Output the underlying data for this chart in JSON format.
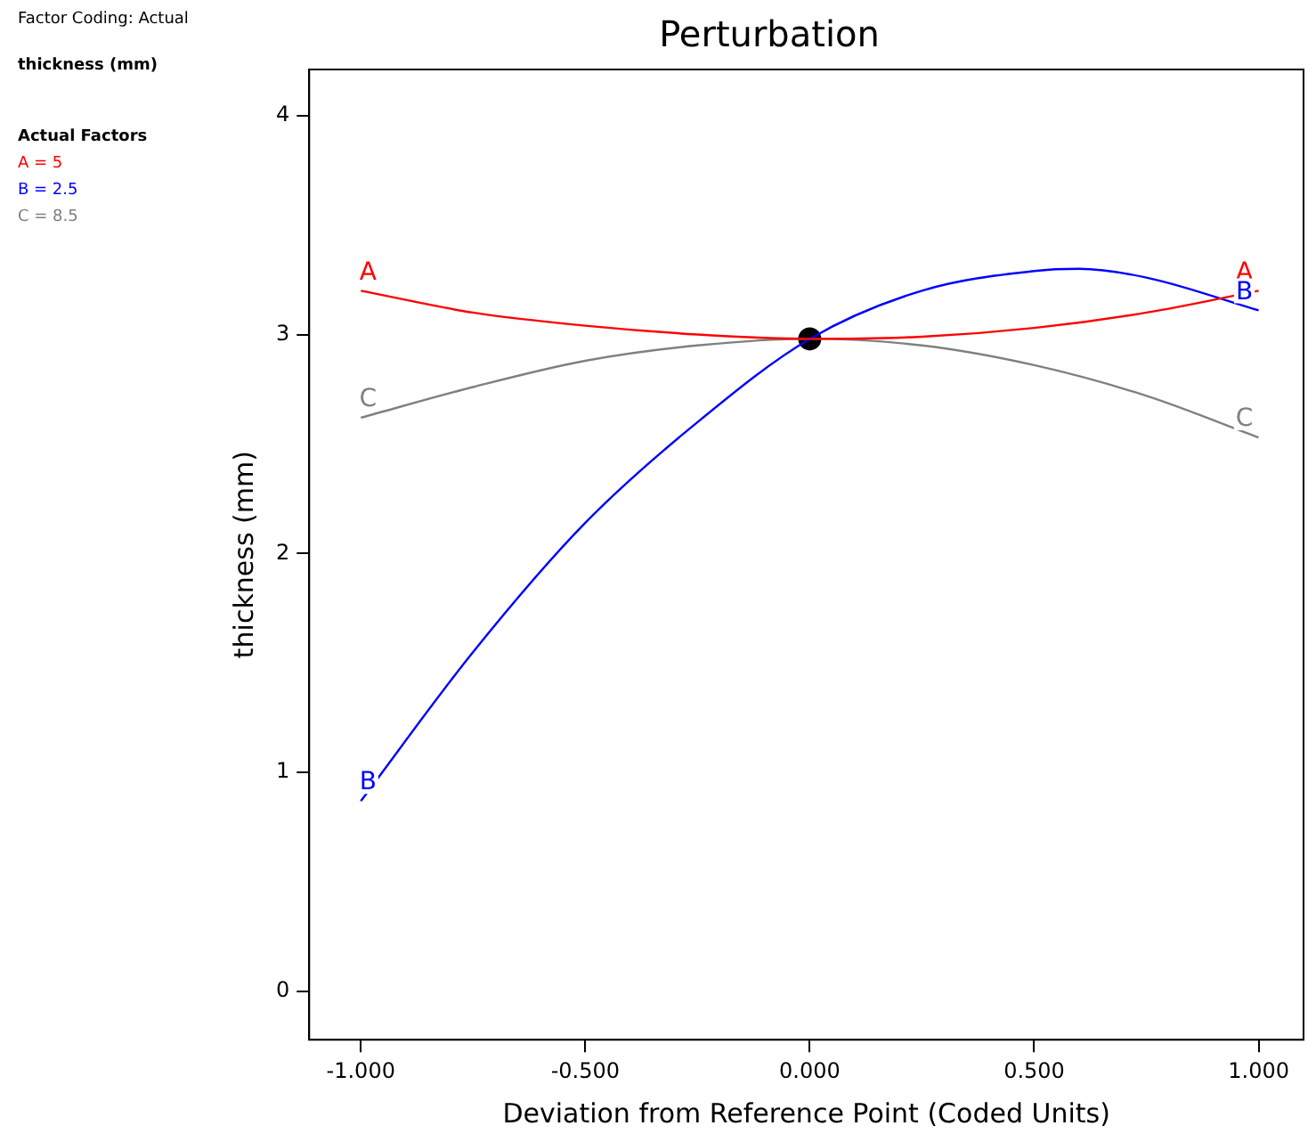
{
  "chart_data": {
    "type": "line",
    "title": "Perturbation",
    "xlabel": "Deviation from Reference Point (Coded Units)",
    "ylabel": "thickness (mm)",
    "annotations": [
      "Factor Coding: Actual",
      "thickness (mm)",
      "Actual Factors",
      "A = 5",
      "B = 2.5",
      "C = 8.5"
    ],
    "xlim": [
      -1.115,
      1.1
    ],
    "ylim": [
      -0.22,
      4.21
    ],
    "xticks": [
      {
        "value": -1,
        "label": "-1.000"
      },
      {
        "value": -0.5,
        "label": "-0.500"
      },
      {
        "value": 0,
        "label": "0.000"
      },
      {
        "value": 0.5,
        "label": "0.500"
      },
      {
        "value": 1,
        "label": "1.000"
      }
    ],
    "yticks": [
      0,
      1,
      2,
      3,
      4
    ],
    "grid": false,
    "legend": false,
    "marker": "none",
    "line_style": "solid",
    "series": [
      {
        "name": "A",
        "color": "#ff0000",
        "x": [
          -1,
          -0.75,
          -0.5,
          -0.25,
          0,
          0.25,
          0.5,
          0.75,
          1
        ],
        "values": [
          3.2,
          3.1,
          3.04,
          3.0,
          2.98,
          2.99,
          3.03,
          3.1,
          3.2
        ]
      },
      {
        "name": "B",
        "color": "#0000ff",
        "x": [
          -1,
          -0.75,
          -0.5,
          -0.25,
          0,
          0.25,
          0.5,
          0.6,
          0.75,
          1
        ],
        "values": [
          0.87,
          1.55,
          2.14,
          2.6,
          2.98,
          3.2,
          3.29,
          3.3,
          3.26,
          3.11
        ]
      },
      {
        "name": "C",
        "color": "#808080",
        "x": [
          -1,
          -0.75,
          -0.5,
          -0.25,
          0,
          0.25,
          0.5,
          0.75,
          1
        ],
        "values": [
          2.62,
          2.76,
          2.88,
          2.95,
          2.98,
          2.95,
          2.86,
          2.72,
          2.53
        ]
      },
      {
        "type": "scatter",
        "color": "#000000",
        "marker": "circle",
        "x": [
          0
        ],
        "values": [
          2.98
        ]
      }
    ]
  }
}
